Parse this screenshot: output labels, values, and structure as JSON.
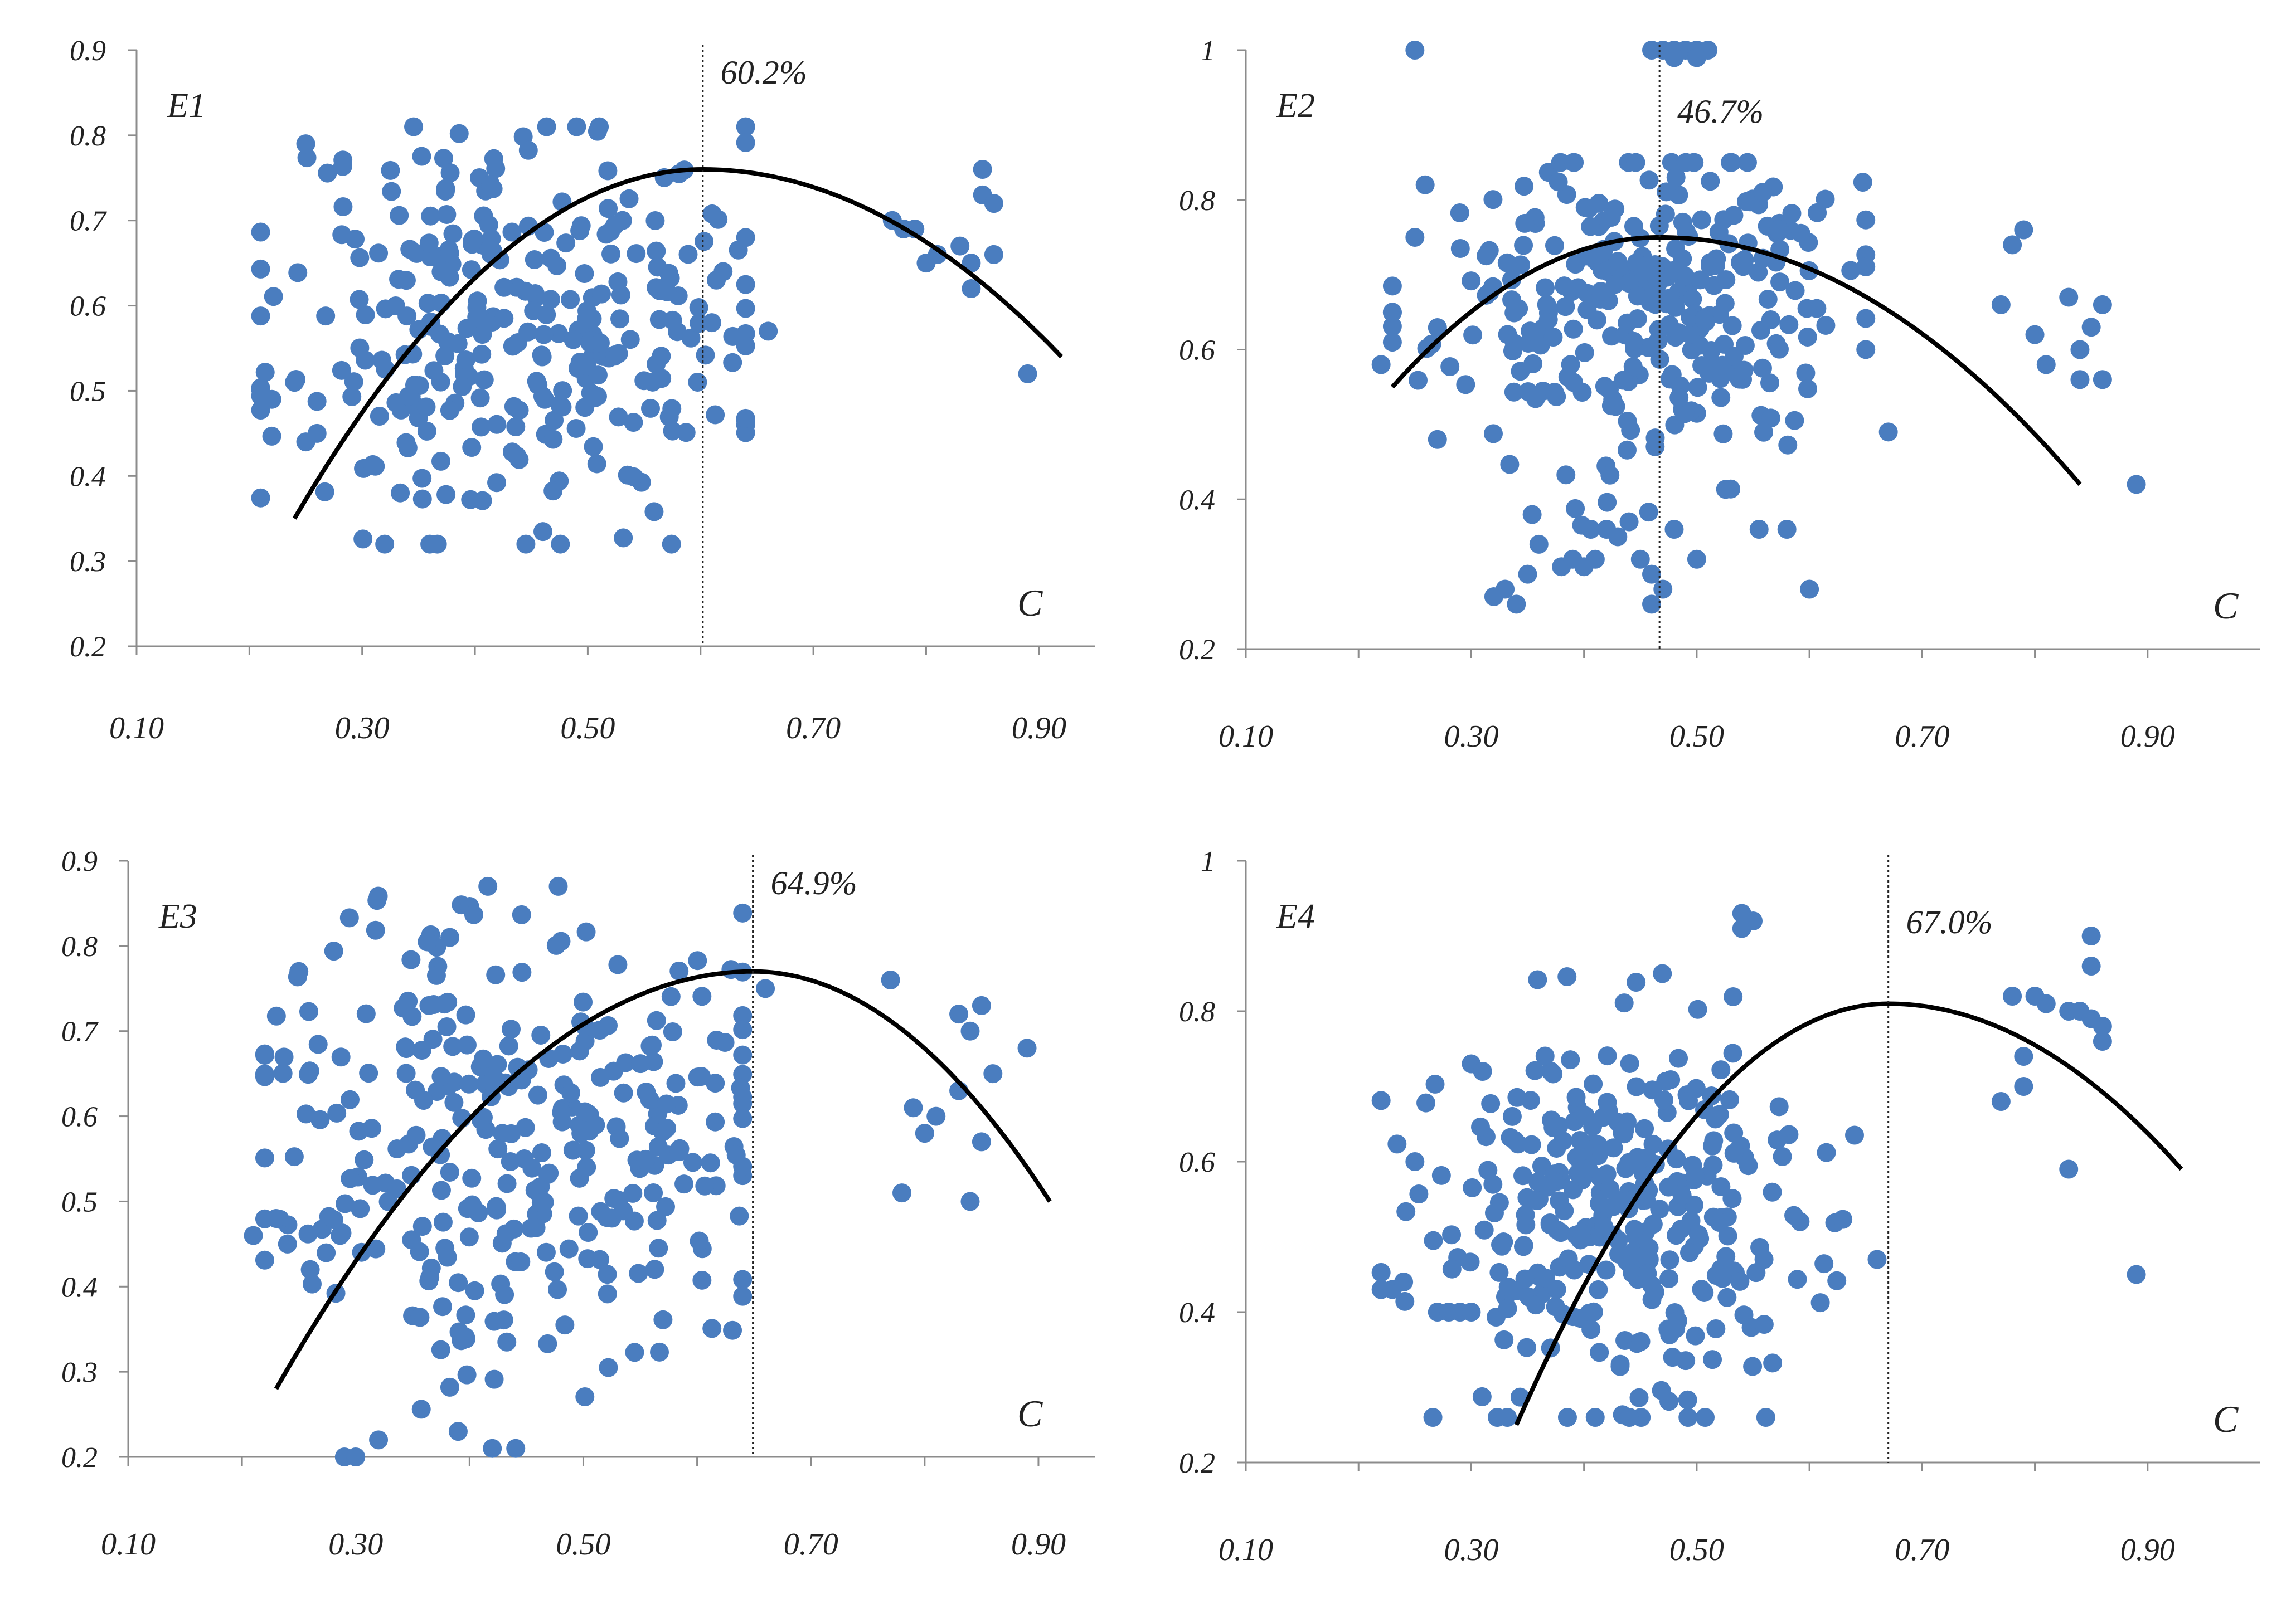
{
  "colors": {
    "dot": "#4a7dbf",
    "curve": "#000000",
    "axis": "#8c8c8c",
    "text": "#222222"
  },
  "chart_data": [
    {
      "type": "scatter",
      "panel_label": "E1",
      "xlabel": "C",
      "xlim": [
        0.1,
        0.95
      ],
      "ylim": [
        0.2,
        0.9
      ],
      "x_ticks": [
        "0.10",
        "0.30",
        "0.50",
        "0.70",
        "0.90"
      ],
      "y_ticks": [
        "0.2",
        "0.3",
        "0.4",
        "0.5",
        "0.6",
        "0.7",
        "0.8",
        "0.9"
      ],
      "peak_x": 0.602,
      "peak_label": "60.2%",
      "curve": {
        "x_start": 0.24,
        "x_end": 0.92,
        "peak_y": 0.76,
        "y_start": 0.35,
        "y_end": 0.54
      },
      "scatter": {
        "n": 300,
        "x_center": 0.44,
        "x_spread": 0.11,
        "y_center": 0.58,
        "y_spread": 0.12,
        "x_min": 0.21,
        "x_max": 0.64,
        "y_min": 0.32,
        "y_max": 0.81,
        "seed": 11
      },
      "extra_points": [
        [
          0.25,
          0.79
        ],
        [
          0.22,
          0.49
        ],
        [
          0.24,
          0.51
        ],
        [
          0.25,
          0.44
        ],
        [
          0.26,
          0.45
        ],
        [
          0.66,
          0.57
        ],
        [
          0.77,
          0.7
        ],
        [
          0.78,
          0.69
        ],
        [
          0.79,
          0.69
        ],
        [
          0.8,
          0.65
        ],
        [
          0.81,
          0.66
        ],
        [
          0.83,
          0.67
        ],
        [
          0.84,
          0.65
        ],
        [
          0.84,
          0.62
        ],
        [
          0.85,
          0.73
        ],
        [
          0.85,
          0.76
        ],
        [
          0.86,
          0.72
        ],
        [
          0.86,
          0.66
        ],
        [
          0.89,
          0.52
        ],
        [
          0.64,
          0.68
        ],
        [
          0.62,
          0.64
        ],
        [
          0.61,
          0.58
        ]
      ]
    },
    {
      "type": "scatter",
      "panel_label": "E2",
      "xlabel": "C",
      "xlim": [
        0.1,
        1.0
      ],
      "ylim": [
        0.2,
        1.0
      ],
      "x_ticks": [
        "0.10",
        "0.30",
        "0.50",
        "0.70",
        "0.90"
      ],
      "y_ticks": [
        "0.2",
        "0.4",
        "0.6",
        "0.8",
        "1"
      ],
      "peak_x": 0.467,
      "peak_label": "46.7%",
      "curve": {
        "x_start": 0.23,
        "x_end": 0.84,
        "peak_y": 0.75,
        "y_start": 0.55,
        "y_end": 0.42
      },
      "scatter": {
        "n": 300,
        "x_center": 0.45,
        "x_spread": 0.09,
        "y_center": 0.66,
        "y_spread": 0.11,
        "x_min": 0.23,
        "x_max": 0.65,
        "y_min": 0.36,
        "y_max": 0.85,
        "seed": 23
      },
      "extra_points": [
        [
          0.25,
          1.0
        ],
        [
          0.46,
          1.0
        ],
        [
          0.47,
          1.0
        ],
        [
          0.48,
          1.0
        ],
        [
          0.49,
          1.0
        ],
        [
          0.5,
          1.0
        ],
        [
          0.51,
          1.0
        ],
        [
          0.48,
          0.99
        ],
        [
          0.5,
          0.99
        ],
        [
          0.22,
          0.58
        ],
        [
          0.23,
          0.61
        ],
        [
          0.25,
          0.75
        ],
        [
          0.27,
          0.48
        ],
        [
          0.32,
          0.27
        ],
        [
          0.33,
          0.28
        ],
        [
          0.34,
          0.26
        ],
        [
          0.35,
          0.3
        ],
        [
          0.36,
          0.34
        ],
        [
          0.38,
          0.31
        ],
        [
          0.39,
          0.32
        ],
        [
          0.4,
          0.31
        ],
        [
          0.41,
          0.32
        ],
        [
          0.42,
          0.36
        ],
        [
          0.43,
          0.35
        ],
        [
          0.44,
          0.37
        ],
        [
          0.45,
          0.32
        ],
        [
          0.46,
          0.3
        ],
        [
          0.46,
          0.26
        ],
        [
          0.47,
          0.28
        ],
        [
          0.48,
          0.36
        ],
        [
          0.5,
          0.32
        ],
        [
          0.58,
          0.36
        ],
        [
          0.6,
          0.28
        ],
        [
          0.67,
          0.49
        ],
        [
          0.77,
          0.66
        ],
        [
          0.78,
          0.74
        ],
        [
          0.79,
          0.76
        ],
        [
          0.8,
          0.62
        ],
        [
          0.81,
          0.58
        ],
        [
          0.83,
          0.67
        ],
        [
          0.84,
          0.6
        ],
        [
          0.84,
          0.56
        ],
        [
          0.85,
          0.63
        ],
        [
          0.86,
          0.66
        ],
        [
          0.86,
          0.56
        ],
        [
          0.89,
          0.42
        ]
      ]
    },
    {
      "type": "scatter",
      "panel_label": "E3",
      "xlabel": "C",
      "xlim": [
        0.1,
        0.95
      ],
      "ylim": [
        0.2,
        0.9
      ],
      "x_ticks": [
        "0.10",
        "0.30",
        "0.50",
        "0.70",
        "0.90"
      ],
      "y_ticks": [
        "0.2",
        "0.3",
        "0.4",
        "0.5",
        "0.6",
        "0.7",
        "0.8",
        "0.9"
      ],
      "peak_x": 0.649,
      "peak_label": "64.9%",
      "curve": {
        "x_start": 0.23,
        "x_end": 0.91,
        "peak_y": 0.77,
        "y_start": 0.28,
        "y_end": 0.5
      },
      "scatter": {
        "n": 310,
        "x_center": 0.44,
        "x_spread": 0.11,
        "y_center": 0.59,
        "y_spread": 0.14,
        "x_min": 0.22,
        "x_max": 0.64,
        "y_min": 0.21,
        "y_max": 0.87,
        "seed": 37
      },
      "extra_points": [
        [
          0.21,
          0.46
        ],
        [
          0.23,
          0.48
        ],
        [
          0.24,
          0.45
        ],
        [
          0.25,
          0.77
        ],
        [
          0.26,
          0.42
        ],
        [
          0.29,
          0.2
        ],
        [
          0.3,
          0.2
        ],
        [
          0.32,
          0.22
        ],
        [
          0.39,
          0.23
        ],
        [
          0.42,
          0.21
        ],
        [
          0.66,
          0.75
        ],
        [
          0.77,
          0.76
        ],
        [
          0.78,
          0.51
        ],
        [
          0.79,
          0.61
        ],
        [
          0.8,
          0.58
        ],
        [
          0.81,
          0.6
        ],
        [
          0.83,
          0.72
        ],
        [
          0.83,
          0.63
        ],
        [
          0.84,
          0.7
        ],
        [
          0.84,
          0.5
        ],
        [
          0.85,
          0.57
        ],
        [
          0.85,
          0.73
        ],
        [
          0.86,
          0.65
        ],
        [
          0.89,
          0.68
        ]
      ]
    },
    {
      "type": "scatter",
      "panel_label": "E4",
      "xlabel": "C",
      "xlim": [
        0.1,
        1.0
      ],
      "ylim": [
        0.2,
        1.0
      ],
      "x_ticks": [
        "0.10",
        "0.30",
        "0.50",
        "0.70",
        "0.90"
      ],
      "y_ticks": [
        "0.2",
        "0.4",
        "0.6",
        "0.8",
        "1"
      ],
      "peak_x": 0.67,
      "peak_label": "67.0%",
      "curve": {
        "x_start": 0.34,
        "x_end": 0.93,
        "peak_y": 0.81,
        "y_start": 0.25,
        "y_end": 0.59
      },
      "scatter": {
        "n": 310,
        "x_center": 0.44,
        "x_spread": 0.09,
        "y_center": 0.52,
        "y_spread": 0.13,
        "x_min": 0.22,
        "x_max": 0.64,
        "y_min": 0.26,
        "y_max": 0.85,
        "seed": 53
      },
      "extra_points": [
        [
          0.22,
          0.43
        ],
        [
          0.23,
          0.43
        ],
        [
          0.24,
          0.44
        ],
        [
          0.25,
          0.6
        ],
        [
          0.27,
          0.4
        ],
        [
          0.28,
          0.4
        ],
        [
          0.29,
          0.4
        ],
        [
          0.3,
          0.4
        ],
        [
          0.3,
          0.73
        ],
        [
          0.31,
          0.72
        ],
        [
          0.54,
          0.91
        ],
        [
          0.54,
          0.93
        ],
        [
          0.55,
          0.92
        ],
        [
          0.66,
          0.47
        ],
        [
          0.77,
          0.68
        ],
        [
          0.78,
          0.82
        ],
        [
          0.79,
          0.7
        ],
        [
          0.79,
          0.74
        ],
        [
          0.8,
          0.82
        ],
        [
          0.81,
          0.81
        ],
        [
          0.83,
          0.8
        ],
        [
          0.83,
          0.59
        ],
        [
          0.84,
          0.8
        ],
        [
          0.85,
          0.86
        ],
        [
          0.85,
          0.9
        ],
        [
          0.85,
          0.79
        ],
        [
          0.86,
          0.78
        ],
        [
          0.86,
          0.76
        ],
        [
          0.89,
          0.45
        ]
      ]
    }
  ]
}
